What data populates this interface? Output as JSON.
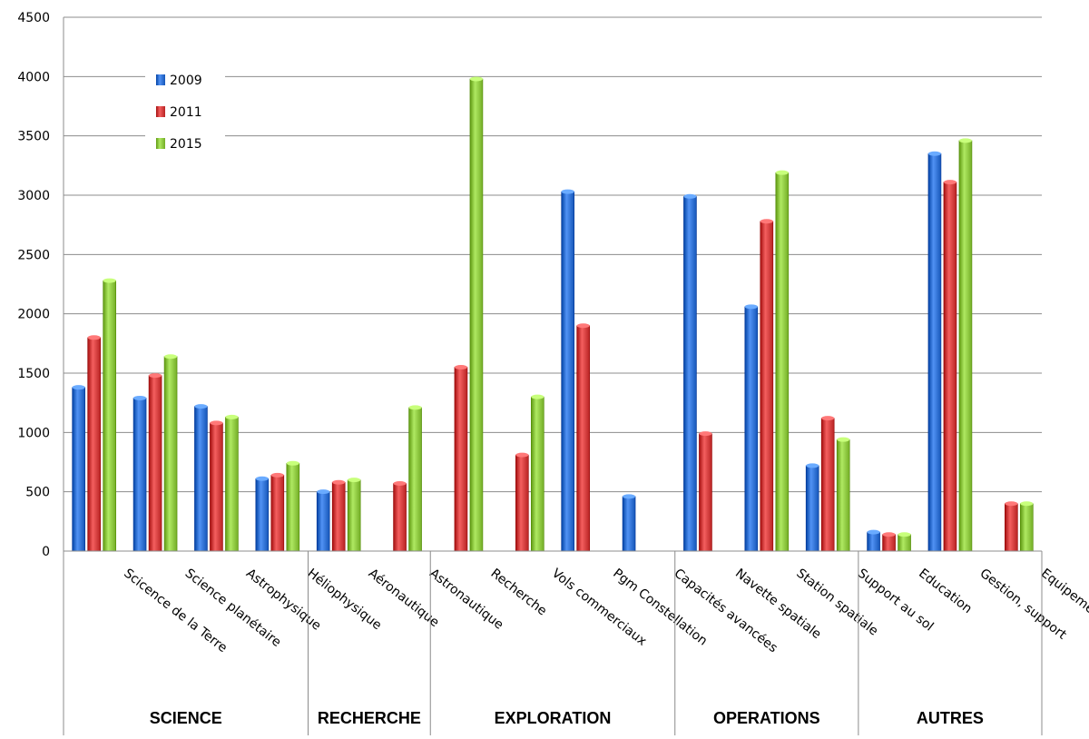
{
  "chart_data": {
    "type": "bar",
    "categories": [
      "Scicence de la Terre",
      "Science planétaire",
      "Astrophysique",
      "Héliophysique",
      "Aéronautique",
      "Astronautique",
      "Recherche",
      "Vols commerciaux",
      "Pgm Constellation",
      "Capacités avancées",
      "Navette spatiale",
      "Station  spatiale",
      "Support au sol",
      "Education",
      "Gestion, support",
      "Equipements"
    ],
    "groups": [
      {
        "label": "SCIENCE",
        "categories": 4
      },
      {
        "label": "RECHERCHE",
        "categories": 2
      },
      {
        "label": "EXPLORATION",
        "categories": 4
      },
      {
        "label": "OPERATIONS",
        "categories": 3
      },
      {
        "label": "AUTRES",
        "categories": 3
      }
    ],
    "series": [
      {
        "name": "2009",
        "color": "#2e6fd1",
        "values": [
          1380,
          1290,
          1220,
          610,
          500,
          0,
          0,
          0,
          3030,
          460,
          2990,
          2060,
          720,
          160,
          3350,
          0
        ]
      },
      {
        "name": "2011",
        "color": "#d13c3c",
        "values": [
          1800,
          1480,
          1080,
          640,
          580,
          570,
          1550,
          810,
          1900,
          0,
          990,
          2780,
          1120,
          140,
          3110,
          400
        ]
      },
      {
        "name": "2015",
        "color": "#8cc63f",
        "values": [
          2280,
          1640,
          1130,
          740,
          600,
          1210,
          3980,
          1300,
          0,
          0,
          0,
          3190,
          940,
          140,
          3460,
          400
        ]
      }
    ],
    "ylim": [
      0,
      4500
    ],
    "yticks": [
      0,
      500,
      1000,
      1500,
      2000,
      2500,
      3000,
      3500,
      4000,
      4500
    ],
    "grid": true,
    "legend_position": "top-left",
    "title": "",
    "xlabel": "",
    "ylabel": ""
  }
}
